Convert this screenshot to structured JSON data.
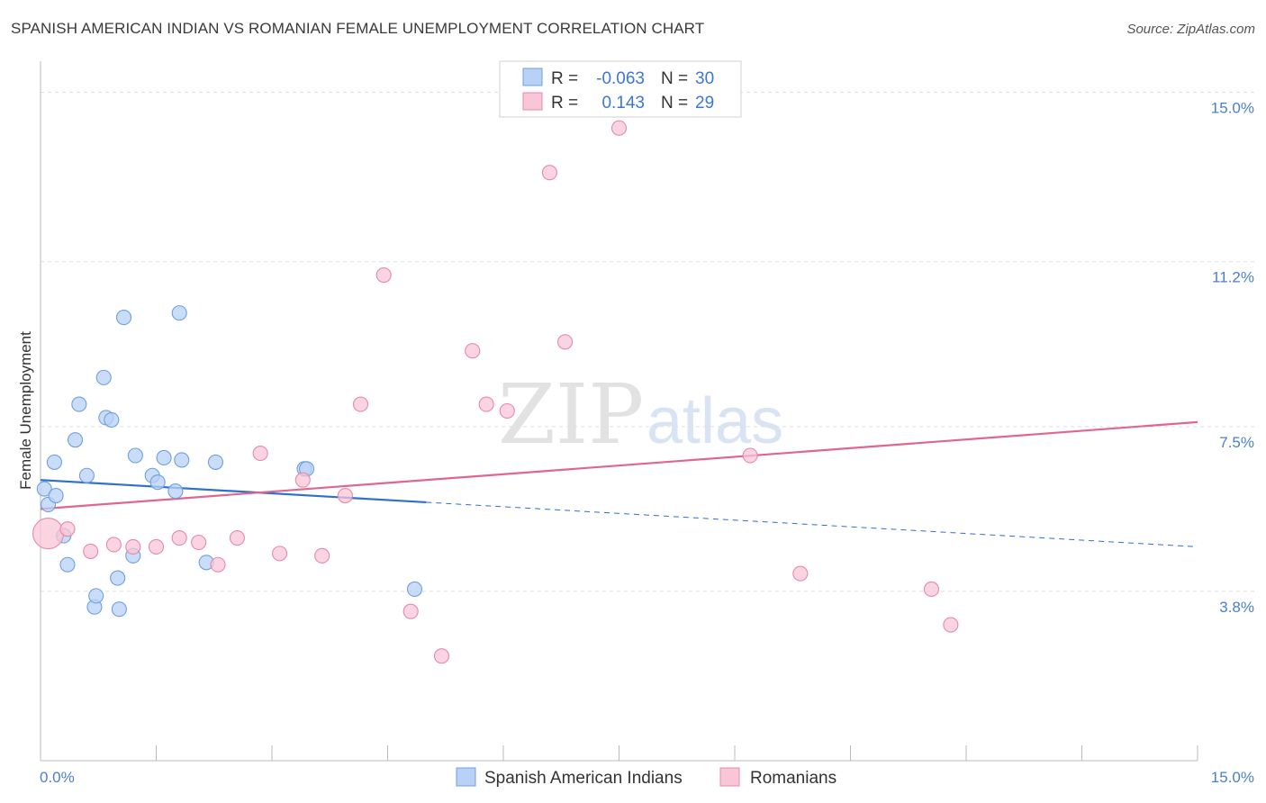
{
  "title": "SPANISH AMERICAN INDIAN VS ROMANIAN FEMALE UNEMPLOYMENT CORRELATION CHART",
  "source": "Source: ZipAtlas.com",
  "watermark": {
    "zip": "ZIP",
    "atlas": "atlas"
  },
  "colors": {
    "blue_fill": "#b8d1f5",
    "blue_stroke": "#6f9fe0",
    "blue_line": "#2e6fd1",
    "pink_fill": "#f8c6d6",
    "pink_stroke": "#e58aa8",
    "pink_line": "#e06690",
    "grid": "#dddddd",
    "label": "#4a7fd0"
  },
  "legend": {
    "rows": [
      {
        "r_label": "R =",
        "r_value": "-0.063",
        "n_label": "N =",
        "n_value": "30"
      },
      {
        "r_label": "R =",
        "r_value": "0.143",
        "n_label": "N =",
        "n_value": "29"
      }
    ]
  },
  "chart_data": {
    "type": "scatter",
    "ylabel": "Female Unemployment",
    "xlim": [
      0,
      15
    ],
    "ylim": [
      0,
      15.7
    ],
    "y_ticks": [
      {
        "value": 3.8,
        "label": "3.8%"
      },
      {
        "value": 7.5,
        "label": "7.5%"
      },
      {
        "value": 11.2,
        "label": "11.2%"
      },
      {
        "value": 15.0,
        "label": "15.0%"
      }
    ],
    "x_tick_labels": {
      "min": "0.0%",
      "max": "15.0%"
    },
    "x_minor_ticks": [
      1.5,
      3.0,
      4.5,
      6.0,
      7.5,
      9.0,
      10.5,
      12.0,
      13.5,
      15.0
    ],
    "legend_placement": "top-center",
    "series": [
      {
        "name": "Spanish American Indians",
        "color": "blue",
        "points": [
          [
            0.05,
            6.1
          ],
          [
            0.1,
            5.75
          ],
          [
            0.2,
            5.95
          ],
          [
            0.18,
            6.7
          ],
          [
            0.3,
            5.05
          ],
          [
            0.35,
            4.4
          ],
          [
            0.45,
            7.2
          ],
          [
            0.5,
            8.0
          ],
          [
            0.6,
            6.4
          ],
          [
            0.7,
            3.45
          ],
          [
            0.72,
            3.7
          ],
          [
            0.82,
            8.6
          ],
          [
            0.85,
            7.7
          ],
          [
            0.92,
            7.65
          ],
          [
            1.0,
            4.1
          ],
          [
            1.02,
            3.4
          ],
          [
            1.08,
            9.95
          ],
          [
            1.2,
            4.6
          ],
          [
            1.23,
            6.85
          ],
          [
            1.45,
            6.4
          ],
          [
            1.52,
            6.25
          ],
          [
            1.6,
            6.8
          ],
          [
            1.75,
            6.05
          ],
          [
            1.8,
            10.05
          ],
          [
            1.83,
            6.75
          ],
          [
            2.15,
            4.45
          ],
          [
            2.27,
            6.7
          ],
          [
            3.42,
            6.55
          ],
          [
            3.45,
            6.55
          ],
          [
            4.85,
            3.85
          ]
        ],
        "trend": {
          "x0": 0,
          "y0": 6.3,
          "x1": 5.0,
          "y1": 5.8,
          "dash_x1": 15.0,
          "dash_y1": 4.8
        }
      },
      {
        "name": "Romanians",
        "color": "pink",
        "points": [
          [
            0.1,
            5.1
          ],
          [
            0.35,
            5.2
          ],
          [
            0.65,
            4.7
          ],
          [
            0.95,
            4.85
          ],
          [
            1.2,
            4.8
          ],
          [
            1.5,
            4.8
          ],
          [
            1.8,
            5.0
          ],
          [
            2.05,
            4.9
          ],
          [
            2.3,
            4.4
          ],
          [
            2.55,
            5.0
          ],
          [
            2.85,
            6.9
          ],
          [
            3.1,
            4.65
          ],
          [
            3.4,
            6.3
          ],
          [
            3.65,
            4.6
          ],
          [
            3.95,
            5.95
          ],
          [
            4.15,
            8.0
          ],
          [
            4.45,
            10.9
          ],
          [
            4.8,
            3.35
          ],
          [
            5.2,
            2.35
          ],
          [
            5.6,
            9.2
          ],
          [
            5.78,
            8.0
          ],
          [
            6.05,
            7.85
          ],
          [
            6.6,
            13.2
          ],
          [
            6.8,
            9.4
          ],
          [
            7.5,
            14.2
          ],
          [
            9.2,
            6.85
          ],
          [
            9.85,
            4.2
          ],
          [
            11.55,
            3.85
          ],
          [
            11.8,
            3.05
          ]
        ],
        "big_point": [
          0.1,
          5.1
        ],
        "trend": {
          "x0": 0,
          "y0": 5.65,
          "x1": 15.0,
          "y1": 7.6
        }
      }
    ]
  }
}
